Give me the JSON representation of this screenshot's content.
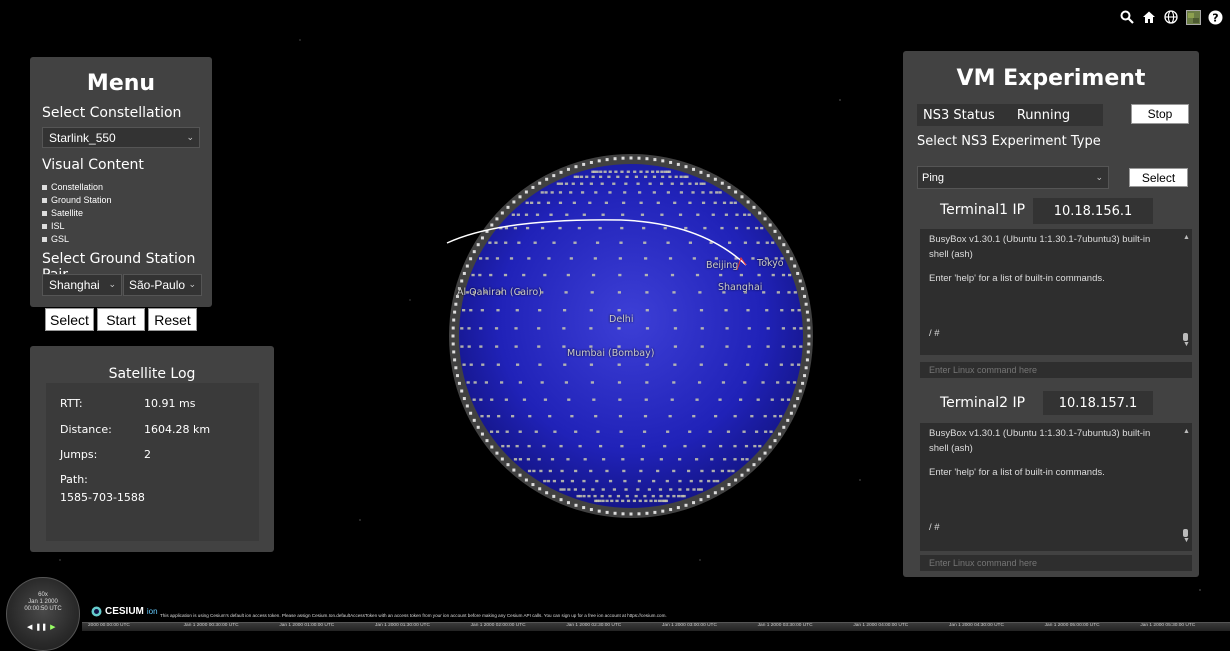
{
  "toolbar": {
    "icons": [
      "search-icon",
      "home-icon",
      "globe-icon",
      "layers-icon",
      "help-icon"
    ]
  },
  "menu": {
    "title": "Menu",
    "constellation_label": "Select Constellation",
    "constellation_value": "Starlink_550",
    "visual_content_label": "Visual Content",
    "visual_items": [
      "Constellation",
      "Ground Station",
      "Satellite",
      "ISL",
      "GSL"
    ],
    "ground_pair_label": "Select Ground Station Pair",
    "station_a": "Shanghai",
    "station_b": "São-Paulo",
    "select_btn": "Select",
    "start_btn": "Start",
    "reset_btn": "Reset"
  },
  "satlog": {
    "title": "Satellite Log",
    "rtt_label": "RTT:",
    "rtt_value": "10.91 ms",
    "distance_label": "Distance:",
    "distance_value": "1604.28 km",
    "jumps_label": "Jumps:",
    "jumps_value": "2",
    "path_label": "Path:",
    "path_value": "1585-703-1588"
  },
  "vm": {
    "title": "VM Experiment",
    "status_label": "NS3 Status",
    "status_value": "Running",
    "stop_btn": "Stop",
    "type_label": "Select NS3 Experiment Type",
    "type_value": "Ping",
    "select_btn": "Select",
    "t1_label": "Terminal1 IP",
    "t1_ip": "10.18.156.1",
    "t2_label": "Terminal2 IP",
    "t2_ip": "10.18.157.1",
    "term_line1": "BusyBox v1.30.1 (Ubuntu 1:1.30.1-7ubuntu3) built-in shell (ash)",
    "term_line2": "Enter 'help' for a list of built-in commands.",
    "term_prompt": "/ #",
    "cmd_placeholder": "Enter Linux command here"
  },
  "globe": {
    "cities": [
      "Al Qahirah (Cairo)",
      "Delhi",
      "Mumbai (Bombay)",
      "Shanghai",
      "Beijing",
      "Tokyo"
    ]
  },
  "clock": {
    "speed": "60x",
    "date": "Jan 1 2000",
    "time": "00:00:50 UTC"
  },
  "cesium": {
    "brand": "CESIUM",
    "ion": "ion",
    "credit": "This application is using Cesium's default ion access token. Please assign Cesium.Ion.defaultAccessToken with an access token from your ion account before making any Cesium API calls. You can sign up for a free ion account at https://cesium.com."
  },
  "timeline": {
    "ticks": [
      "2000 00:00:00 UTC",
      "Jan 1 2000 00:30:00 UTC",
      "Jan 1 2000 01:00:00 UTC",
      "Jan 1 2000 01:30:00 UTC",
      "Jan 1 2000 02:00:00 UTC",
      "Jan 1 2000 02:30:00 UTC",
      "Jan 1 2000 03:00:00 UTC",
      "Jan 1 2000 03:30:00 UTC",
      "Jan 1 2000 04:00:00 UTC",
      "Jan 1 2000 04:30:00 UTC",
      "Jan 1 2000 05:00:00 UTC",
      "Jan 1 2000 05:30:00 UTC"
    ]
  }
}
